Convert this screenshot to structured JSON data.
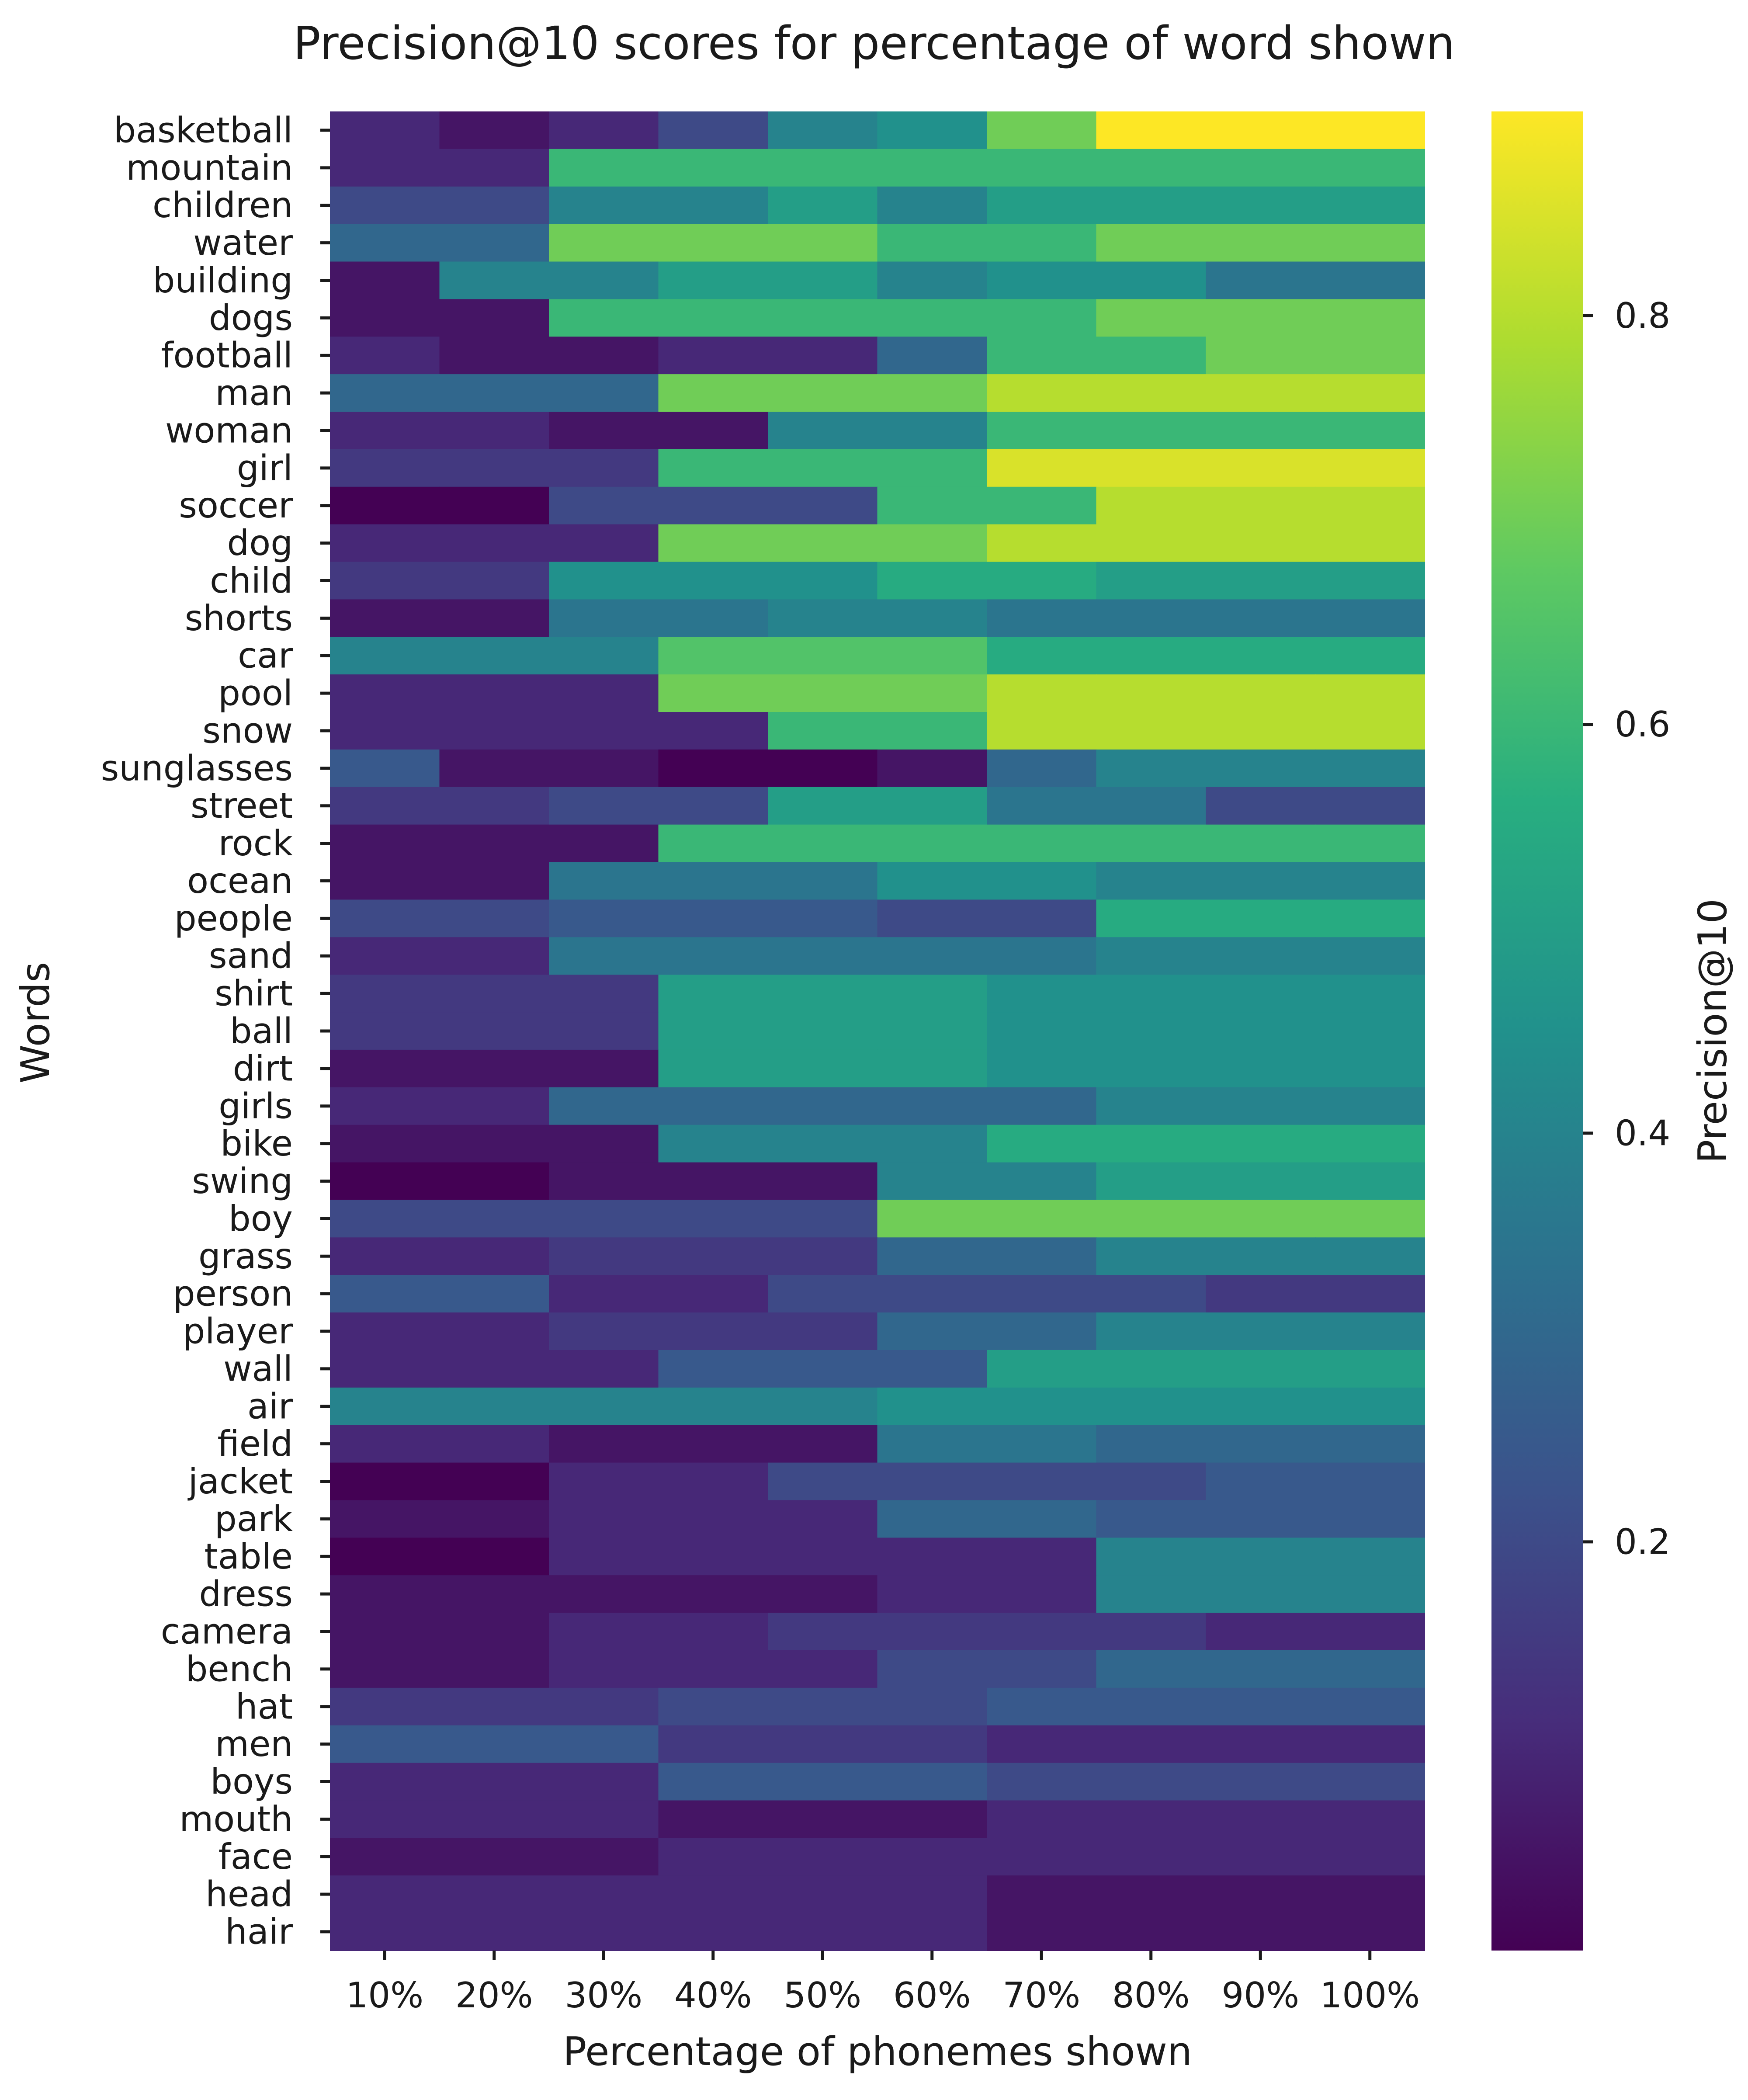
{
  "chart_data": {
    "type": "heatmap",
    "title": "Precision@10 scores for percentage of word shown",
    "xlabel": "Percentage of phonemes shown",
    "ylabel": "Words",
    "x_categories": [
      "10%",
      "20%",
      "30%",
      "40%",
      "50%",
      "60%",
      "70%",
      "80%",
      "90%",
      "100%"
    ],
    "y_categories": [
      "basketball",
      "mountain",
      "children",
      "water",
      "building",
      "dogs",
      "football",
      "man",
      "woman",
      "girl",
      "soccer",
      "dog",
      "child",
      "shorts",
      "car",
      "pool",
      "snow",
      "sunglasses",
      "street",
      "rock",
      "ocean",
      "people",
      "sand",
      "shirt",
      "ball",
      "dirt",
      "girls",
      "bike",
      "swing",
      "boy",
      "grass",
      "person",
      "player",
      "wall",
      "air",
      "field",
      "jacket",
      "park",
      "table",
      "dress",
      "camera",
      "bench",
      "hat",
      "men",
      "boys",
      "mouth",
      "face",
      "head",
      "hair"
    ],
    "values": [
      [
        0.1,
        0.05,
        0.1,
        0.2,
        0.4,
        0.45,
        0.7,
        0.9,
        0.9,
        0.9
      ],
      [
        0.1,
        0.1,
        0.6,
        0.6,
        0.6,
        0.6,
        0.6,
        0.6,
        0.6,
        0.6
      ],
      [
        0.2,
        0.2,
        0.4,
        0.4,
        0.5,
        0.4,
        0.5,
        0.5,
        0.5,
        0.5
      ],
      [
        0.3,
        0.3,
        0.7,
        0.7,
        0.7,
        0.6,
        0.6,
        0.7,
        0.7,
        0.7
      ],
      [
        0.05,
        0.4,
        0.4,
        0.5,
        0.5,
        0.4,
        0.45,
        0.45,
        0.35,
        0.35
      ],
      [
        0.05,
        0.05,
        0.6,
        0.6,
        0.6,
        0.6,
        0.6,
        0.7,
        0.7,
        0.7
      ],
      [
        0.1,
        0.05,
        0.05,
        0.1,
        0.1,
        0.3,
        0.6,
        0.6,
        0.7,
        0.7
      ],
      [
        0.3,
        0.3,
        0.3,
        0.7,
        0.7,
        0.7,
        0.8,
        0.8,
        0.8,
        0.8
      ],
      [
        0.1,
        0.1,
        0.05,
        0.05,
        0.4,
        0.4,
        0.6,
        0.6,
        0.6,
        0.6
      ],
      [
        0.15,
        0.15,
        0.15,
        0.6,
        0.6,
        0.6,
        0.85,
        0.85,
        0.85,
        0.85
      ],
      [
        0.0,
        0.0,
        0.2,
        0.2,
        0.2,
        0.6,
        0.6,
        0.8,
        0.8,
        0.8
      ],
      [
        0.1,
        0.1,
        0.1,
        0.7,
        0.7,
        0.7,
        0.8,
        0.8,
        0.8,
        0.8
      ],
      [
        0.15,
        0.15,
        0.45,
        0.45,
        0.45,
        0.55,
        0.55,
        0.5,
        0.5,
        0.5
      ],
      [
        0.05,
        0.05,
        0.35,
        0.35,
        0.4,
        0.4,
        0.35,
        0.35,
        0.35,
        0.35
      ],
      [
        0.4,
        0.4,
        0.4,
        0.65,
        0.65,
        0.65,
        0.55,
        0.55,
        0.55,
        0.55
      ],
      [
        0.1,
        0.1,
        0.1,
        0.7,
        0.7,
        0.7,
        0.8,
        0.8,
        0.8,
        0.8
      ],
      [
        0.1,
        0.1,
        0.1,
        0.1,
        0.6,
        0.6,
        0.8,
        0.8,
        0.8,
        0.8
      ],
      [
        0.25,
        0.05,
        0.05,
        0.0,
        0.0,
        0.05,
        0.3,
        0.4,
        0.4,
        0.4
      ],
      [
        0.15,
        0.15,
        0.2,
        0.2,
        0.5,
        0.5,
        0.35,
        0.35,
        0.2,
        0.2
      ],
      [
        0.05,
        0.05,
        0.05,
        0.6,
        0.6,
        0.6,
        0.6,
        0.6,
        0.6,
        0.6
      ],
      [
        0.05,
        0.05,
        0.35,
        0.35,
        0.35,
        0.45,
        0.45,
        0.4,
        0.4,
        0.4
      ],
      [
        0.2,
        0.2,
        0.25,
        0.25,
        0.25,
        0.2,
        0.2,
        0.55,
        0.55,
        0.55
      ],
      [
        0.1,
        0.1,
        0.35,
        0.35,
        0.35,
        0.35,
        0.35,
        0.4,
        0.4,
        0.4
      ],
      [
        0.15,
        0.15,
        0.15,
        0.5,
        0.5,
        0.5,
        0.45,
        0.45,
        0.45,
        0.45
      ],
      [
        0.15,
        0.15,
        0.15,
        0.5,
        0.5,
        0.5,
        0.45,
        0.45,
        0.45,
        0.45
      ],
      [
        0.05,
        0.05,
        0.05,
        0.5,
        0.5,
        0.5,
        0.45,
        0.45,
        0.45,
        0.45
      ],
      [
        0.1,
        0.1,
        0.3,
        0.3,
        0.3,
        0.3,
        0.3,
        0.4,
        0.4,
        0.4
      ],
      [
        0.05,
        0.05,
        0.05,
        0.4,
        0.4,
        0.4,
        0.55,
        0.55,
        0.55,
        0.55
      ],
      [
        0.0,
        0.0,
        0.05,
        0.05,
        0.05,
        0.4,
        0.4,
        0.5,
        0.5,
        0.5
      ],
      [
        0.2,
        0.2,
        0.2,
        0.2,
        0.2,
        0.7,
        0.7,
        0.7,
        0.7,
        0.7
      ],
      [
        0.1,
        0.1,
        0.15,
        0.15,
        0.15,
        0.3,
        0.3,
        0.4,
        0.4,
        0.4
      ],
      [
        0.25,
        0.25,
        0.1,
        0.1,
        0.2,
        0.2,
        0.2,
        0.2,
        0.15,
        0.15
      ],
      [
        0.1,
        0.1,
        0.15,
        0.15,
        0.15,
        0.3,
        0.3,
        0.4,
        0.4,
        0.4
      ],
      [
        0.1,
        0.1,
        0.1,
        0.25,
        0.25,
        0.25,
        0.5,
        0.5,
        0.5,
        0.5
      ],
      [
        0.4,
        0.4,
        0.4,
        0.4,
        0.4,
        0.45,
        0.45,
        0.45,
        0.45,
        0.45
      ],
      [
        0.1,
        0.1,
        0.05,
        0.05,
        0.05,
        0.35,
        0.35,
        0.3,
        0.3,
        0.3
      ],
      [
        0.0,
        0.0,
        0.1,
        0.1,
        0.2,
        0.2,
        0.2,
        0.2,
        0.25,
        0.25
      ],
      [
        0.05,
        0.05,
        0.1,
        0.1,
        0.1,
        0.3,
        0.3,
        0.25,
        0.25,
        0.25
      ],
      [
        0.0,
        0.0,
        0.1,
        0.1,
        0.1,
        0.1,
        0.1,
        0.4,
        0.4,
        0.4
      ],
      [
        0.05,
        0.05,
        0.05,
        0.05,
        0.05,
        0.1,
        0.1,
        0.4,
        0.4,
        0.4
      ],
      [
        0.05,
        0.05,
        0.1,
        0.1,
        0.15,
        0.15,
        0.15,
        0.15,
        0.1,
        0.1
      ],
      [
        0.05,
        0.05,
        0.1,
        0.1,
        0.1,
        0.2,
        0.2,
        0.3,
        0.3,
        0.3
      ],
      [
        0.15,
        0.15,
        0.15,
        0.2,
        0.2,
        0.2,
        0.25,
        0.25,
        0.25,
        0.25
      ],
      [
        0.25,
        0.25,
        0.25,
        0.15,
        0.15,
        0.15,
        0.1,
        0.1,
        0.1,
        0.1
      ],
      [
        0.1,
        0.1,
        0.1,
        0.25,
        0.25,
        0.25,
        0.2,
        0.2,
        0.2,
        0.2
      ],
      [
        0.1,
        0.1,
        0.1,
        0.05,
        0.05,
        0.05,
        0.1,
        0.1,
        0.1,
        0.1
      ],
      [
        0.05,
        0.05,
        0.05,
        0.1,
        0.1,
        0.1,
        0.1,
        0.1,
        0.1,
        0.1
      ],
      [
        0.1,
        0.1,
        0.1,
        0.1,
        0.1,
        0.1,
        0.05,
        0.05,
        0.05,
        0.05
      ],
      [
        0.1,
        0.1,
        0.1,
        0.1,
        0.1,
        0.1,
        0.05,
        0.05,
        0.05,
        0.05
      ]
    ],
    "colormap": "viridis",
    "vmin": 0.0,
    "vmax": 0.9,
    "colorbar": {
      "label": "Precision@10",
      "ticks": [
        0.2,
        0.4,
        0.6,
        0.8
      ],
      "tick_labels": [
        "0.2",
        "0.4",
        "0.6",
        "0.8"
      ]
    }
  }
}
